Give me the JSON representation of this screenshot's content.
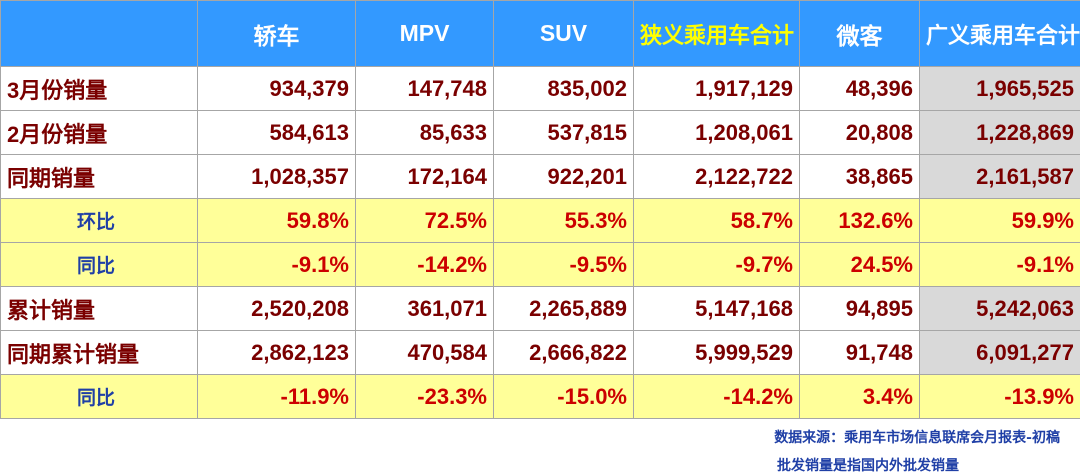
{
  "chart_data": {
    "type": "table",
    "columns": [
      "",
      "轿车",
      "MPV",
      "SUV",
      "狭义乘用车合计",
      "微客",
      "广义乘用车合计"
    ],
    "highlight_column_color": "#ffff00",
    "header_color": "#3399ff",
    "ratio_row_color": "#ffff99",
    "gray_cell_color": "#d9d9d9",
    "rows": [
      {
        "label": "3月份销量",
        "values": [
          "934,379",
          "147,748",
          "835,002",
          "1,917,129",
          "48,396",
          "1,965,525"
        ],
        "kind": "count"
      },
      {
        "label": "2月份销量",
        "values": [
          "584,613",
          "85,633",
          "537,815",
          "1,208,061",
          "20,808",
          "1,228,869"
        ],
        "kind": "count"
      },
      {
        "label": "同期销量",
        "values": [
          "1,028,357",
          "172,164",
          "922,201",
          "2,122,722",
          "38,865",
          "2,161,587"
        ],
        "kind": "count"
      },
      {
        "label": "环比",
        "values": [
          "59.8%",
          "72.5%",
          "55.3%",
          "58.7%",
          "132.6%",
          "59.9%"
        ],
        "kind": "ratio"
      },
      {
        "label": "同比",
        "values": [
          "-9.1%",
          "-14.2%",
          "-9.5%",
          "-9.7%",
          "24.5%",
          "-9.1%"
        ],
        "kind": "ratio"
      },
      {
        "label": "累计销量",
        "values": [
          "2,520,208",
          "361,071",
          "2,265,889",
          "5,147,168",
          "94,895",
          "5,242,063"
        ],
        "kind": "count"
      },
      {
        "label": "同期累计销量",
        "values": [
          "2,862,123",
          "470,584",
          "2,666,822",
          "5,999,529",
          "91,748",
          "6,091,277"
        ],
        "kind": "count"
      },
      {
        "label": "同比",
        "values": [
          "-11.9%",
          "-23.3%",
          "-15.0%",
          "-14.2%",
          "3.4%",
          "-13.9%"
        ],
        "kind": "ratio"
      }
    ]
  },
  "notes": {
    "source": "数据来源：乘用车市场信息联席会月报表-初稿",
    "definition": "批发销量是指国内外批发销量"
  }
}
